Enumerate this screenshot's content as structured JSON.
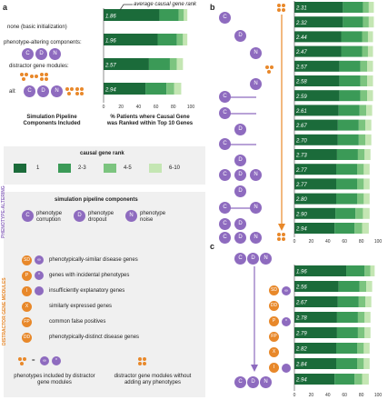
{
  "panels": {
    "a": "a",
    "b": "b",
    "c": "c"
  },
  "colors": {
    "rank1": "#1b6b3a",
    "rank2_3": "#3b9a57",
    "rank4_5": "#7cc47f",
    "rank6_10": "#c4e6b3",
    "purple": "#8e6bbf",
    "orange": "#e8882a",
    "arrow": "#8e6bbf"
  },
  "panel_a": {
    "rows": [
      {
        "label": "none (basic initialization)",
        "value_label": "1.86"
      },
      {
        "label": "phenotype-altering components:",
        "value_label": "1.96"
      },
      {
        "label": "distractor gene modules:",
        "value_label": "2.57"
      },
      {
        "label": "all:",
        "value_label": "2.94"
      }
    ],
    "annotation": "average causal gene rank",
    "xlabel": "% Patients where Causal Gene was Ranked within Top 10 Genes",
    "left_caption": "Simulation Pipeline Components Included",
    "ticks": [
      "0",
      "20",
      "40",
      "60",
      "80",
      "100"
    ]
  },
  "legend_rank": {
    "title": "causal gene rank",
    "items": [
      {
        "label": "1",
        "color": "#1b6b3a"
      },
      {
        "label": "2-3",
        "color": "#3b9a57"
      },
      {
        "label": "4-5",
        "color": "#7cc47f"
      },
      {
        "label": "6-10",
        "color": "#c4e6b3"
      }
    ]
  },
  "components": {
    "title": "simulation pipeline components",
    "phenotype_altering_label": "PHENOTYPE-ALTERING",
    "phenotype_items": [
      {
        "icon": "C",
        "label": "phenotype corruption"
      },
      {
        "icon": "D",
        "label": "phenotype dropout"
      },
      {
        "icon": "N",
        "label": "phenotype noise"
      }
    ],
    "distractor_label": "DISTRACTOR GENE MODULES",
    "distractor_items": [
      {
        "icon": "SD",
        "label": "phenotypically-similar disease genes"
      },
      {
        "icon": "P",
        "label": "genes with incidental phenotypes"
      },
      {
        "icon": "I",
        "label": "insufficiently explanatory genes"
      },
      {
        "icon": "X",
        "label": "similarly expressed genes"
      },
      {
        "icon": "FP",
        "label": "common false positives"
      },
      {
        "icon": "DD",
        "label": "phenotypically-distinct disease genes"
      }
    ],
    "footer_left": "phenotypes included by distractor gene modules",
    "footer_right": "distractor gene modules without adding any phenotypes"
  },
  "chart_data": [
    {
      "type": "bar",
      "title": "",
      "panel": "a",
      "categories": [
        "none (basic initialization)",
        "phenotype-altering components:",
        "distractor gene modules:",
        "all:"
      ],
      "avg_rank": [
        "1.86",
        "1.96",
        "2.57",
        "2.94"
      ],
      "series": [
        {
          "name": "1",
          "values": [
            64,
            62,
            52,
            48
          ]
        },
        {
          "name": "2-3",
          "values": [
            22,
            22,
            24,
            24
          ]
        },
        {
          "name": "4-5",
          "values": [
            6,
            7,
            8,
            9
          ]
        },
        {
          "name": "6-10",
          "values": [
            4,
            5,
            7,
            8
          ]
        }
      ],
      "xlim": [
        0,
        100
      ],
      "xlabel": "% Patients where Causal Gene was Ranked within Top 10 Genes"
    },
    {
      "type": "bar",
      "title": "",
      "panel": "b",
      "avg_rank": [
        "2.31",
        "2.32",
        "2.44",
        "2.47",
        "2.57",
        "2.58",
        "2.59",
        "2.61",
        "2.67",
        "2.70",
        "2.73",
        "2.77",
        "2.77",
        "2.80",
        "2.90",
        "2.94"
      ],
      "series": [
        {
          "name": "1",
          "values": [
            58,
            58,
            56,
            56,
            54,
            54,
            54,
            53,
            52,
            52,
            51,
            50,
            50,
            50,
            49,
            48
          ]
        },
        {
          "name": "2-3",
          "values": [
            24,
            24,
            25,
            25,
            25,
            25,
            25,
            25,
            25,
            25,
            25,
            25,
            25,
            25,
            24,
            24
          ]
        },
        {
          "name": "4-5",
          "values": [
            7,
            7,
            7,
            7,
            8,
            8,
            8,
            8,
            8,
            8,
            8,
            8,
            8,
            8,
            9,
            9
          ]
        },
        {
          "name": "6-10",
          "values": [
            6,
            6,
            6,
            6,
            7,
            7,
            7,
            7,
            7,
            7,
            7,
            7,
            7,
            7,
            8,
            8
          ]
        }
      ],
      "xlim": [
        0,
        100
      ],
      "ticks": [
        "0",
        "20",
        "40",
        "60",
        "80",
        "100"
      ]
    },
    {
      "type": "bar",
      "title": "",
      "panel": "c",
      "avg_rank": [
        "1.96",
        "2.56",
        "2.67",
        "2.78",
        "2.79",
        "2.82",
        "2.84",
        "2.94"
      ],
      "series": [
        {
          "name": "1",
          "values": [
            62,
            53,
            52,
            51,
            51,
            50,
            50,
            48
          ]
        },
        {
          "name": "2-3",
          "values": [
            22,
            25,
            25,
            25,
            25,
            25,
            25,
            24
          ]
        },
        {
          "name": "4-5",
          "values": [
            7,
            8,
            8,
            8,
            8,
            8,
            8,
            9
          ]
        },
        {
          "name": "6-10",
          "values": [
            5,
            7,
            7,
            7,
            7,
            7,
            7,
            8
          ]
        }
      ],
      "xlim": [
        0,
        100
      ],
      "ticks": [
        "0",
        "20",
        "40",
        "60",
        "80",
        "100"
      ]
    }
  ]
}
